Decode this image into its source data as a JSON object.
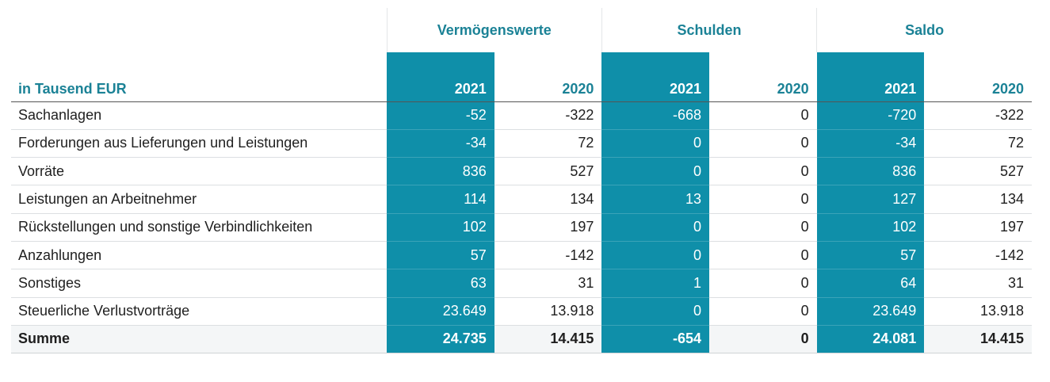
{
  "table": {
    "groups": [
      "Vermögenswerte",
      "Schulden",
      "Saldo"
    ],
    "unit_label": "in Tausend EUR",
    "years": [
      "2021",
      "2020",
      "2021",
      "2020",
      "2021",
      "2020"
    ],
    "rows": [
      {
        "label": "Sachanlagen",
        "values": [
          "-52",
          "-322",
          "-668",
          "0",
          "-720",
          "-322"
        ]
      },
      {
        "label": "Forderungen aus Lieferungen und Leistungen",
        "values": [
          "-34",
          "72",
          "0",
          "0",
          "-34",
          "72"
        ]
      },
      {
        "label": "Vorräte",
        "values": [
          "836",
          "527",
          "0",
          "0",
          "836",
          "527"
        ]
      },
      {
        "label": "Leistungen an Arbeitnehmer",
        "values": [
          "114",
          "134",
          "13",
          "0",
          "127",
          "134"
        ]
      },
      {
        "label": "Rückstellungen und sonstige Verbindlichkeiten",
        "values": [
          "102",
          "197",
          "0",
          "0",
          "102",
          "197"
        ]
      },
      {
        "label": "Anzahlungen",
        "values": [
          "57",
          "-142",
          "0",
          "0",
          "57",
          "-142"
        ]
      },
      {
        "label": "Sonstiges",
        "values": [
          "63",
          "31",
          "1",
          "0",
          "64",
          "31"
        ]
      },
      {
        "label": "Steuerliche Verlustvorträge",
        "values": [
          "23.649",
          "13.918",
          "0",
          "0",
          "23.649",
          "13.918"
        ]
      }
    ],
    "total": {
      "label": "Summe",
      "values": [
        "24.735",
        "14.415",
        "-654",
        "0",
        "24.081",
        "14.415"
      ]
    },
    "colors": {
      "highlight": "#0f8fa9",
      "header_text": "#1b8296",
      "total_background": "#f4f6f7"
    }
  }
}
